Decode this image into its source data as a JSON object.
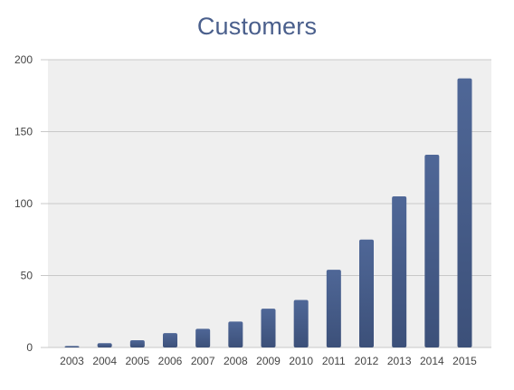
{
  "chart_data": {
    "type": "bar",
    "title": "Customers",
    "xlabel": "",
    "ylabel": "",
    "categories": [
      "2003",
      "2004",
      "2005",
      "2006",
      "2007",
      "2008",
      "2009",
      "2010",
      "2011",
      "2012",
      "2013",
      "2014",
      "2015"
    ],
    "values": [
      1,
      3,
      5,
      10,
      13,
      18,
      27,
      33,
      54,
      75,
      105,
      134,
      187
    ],
    "ylim": [
      0,
      200
    ],
    "yticks": [
      0,
      50,
      100,
      150,
      200
    ],
    "grid": true,
    "legend": "none",
    "colors": {
      "bar_top": "#4f6797",
      "bar_bottom": "#3c5079",
      "plot_background": "#efefef",
      "gridline": "#c8c8c8",
      "title": "#4a5f8c"
    }
  }
}
